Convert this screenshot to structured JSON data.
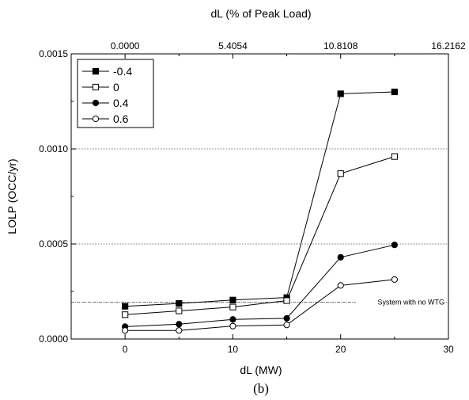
{
  "chart_data": {
    "type": "line",
    "xlabel": "dL (MW)",
    "ylabel": "LOLP (OCC/yr)",
    "top_xlabel": "dL (% of Peak Load)",
    "xlim": [
      -5,
      30
    ],
    "ylim": [
      0,
      0.0015
    ],
    "x_ticks": [
      "0",
      "10",
      "20",
      "30"
    ],
    "y_ticks": [
      "0.0000",
      "0.0005",
      "0.0010",
      "0.0015"
    ],
    "top_x_ticks": [
      "0.0000",
      "5.4054",
      "10.8108",
      "16.2162"
    ],
    "grid": "dotted horizontal at 0.0005, 0.0010 and system line",
    "legend_position": "top-left",
    "x": [
      0,
      5,
      10,
      15,
      20,
      25
    ],
    "series": [
      {
        "name": "-0.4",
        "marker": "filled-square",
        "values": [
          0.000172,
          0.000187,
          0.000205,
          0.000218,
          0.00129,
          0.0013
        ]
      },
      {
        "name": "0",
        "marker": "open-square",
        "values": [
          0.000128,
          0.000148,
          0.000168,
          0.000202,
          0.00087,
          0.00096
        ]
      },
      {
        "name": "0.4",
        "marker": "filled-circle",
        "values": [
          6.5e-05,
          7.8e-05,
          0.000103,
          0.000109,
          0.00043,
          0.000495
        ]
      },
      {
        "name": "0.6",
        "marker": "open-circle",
        "values": [
          4.5e-05,
          4.5e-05,
          6.8e-05,
          7.4e-05,
          0.000282,
          0.000313
        ]
      }
    ],
    "reference_line": {
      "label": "System with no WTG",
      "value": 0.000193
    },
    "caption": "(b)"
  }
}
